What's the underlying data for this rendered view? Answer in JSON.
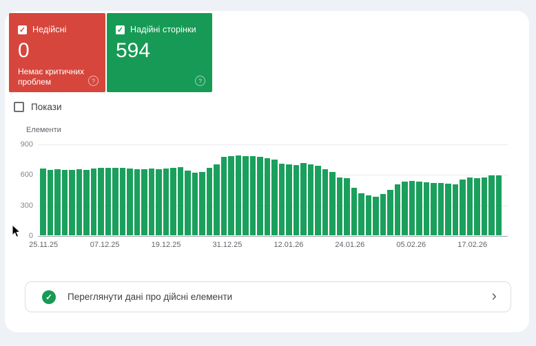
{
  "summary_cards": {
    "invalid": {
      "label": "Недійсні",
      "count": "0",
      "subtext": "Немає критичних проблем",
      "checked": true,
      "color": "#d6463c",
      "help": "?"
    },
    "valid": {
      "label": "Надійні сторінки",
      "count": "594",
      "checked": true,
      "color": "#179a55",
      "help": "?"
    }
  },
  "impressions_toggle": {
    "label": "Покази",
    "checked": false
  },
  "chart_data": {
    "type": "bar",
    "title": "Елементи",
    "ylabel": "Елементи",
    "xlabel": "",
    "ylim": [
      0,
      900
    ],
    "yticks": [
      900,
      600,
      300,
      0
    ],
    "grid": true,
    "legend": "none",
    "bar_color": "#1aa05c",
    "x_tick_labels": [
      "25.11.25",
      "07.12.25",
      "19.12.25",
      "31.12.25",
      "12.01.26",
      "24.01.26",
      "05.02.26",
      "17.02.26"
    ],
    "values": [
      660,
      648,
      652,
      646,
      650,
      655,
      649,
      661,
      669,
      667,
      671,
      668,
      660,
      655,
      658,
      661,
      655,
      660,
      667,
      672,
      638,
      622,
      630,
      668,
      702,
      775,
      786,
      790,
      787,
      781,
      774,
      763,
      748,
      710,
      700,
      693,
      716,
      699,
      688,
      658,
      627,
      573,
      566,
      468,
      415,
      394,
      385,
      412,
      452,
      505,
      532,
      538,
      531,
      523,
      516,
      521,
      513,
      502,
      549,
      571,
      567,
      574,
      594,
      594
    ]
  },
  "cta": {
    "label": "Переглянути дані про дійсні елементи",
    "chevron": "›"
  }
}
